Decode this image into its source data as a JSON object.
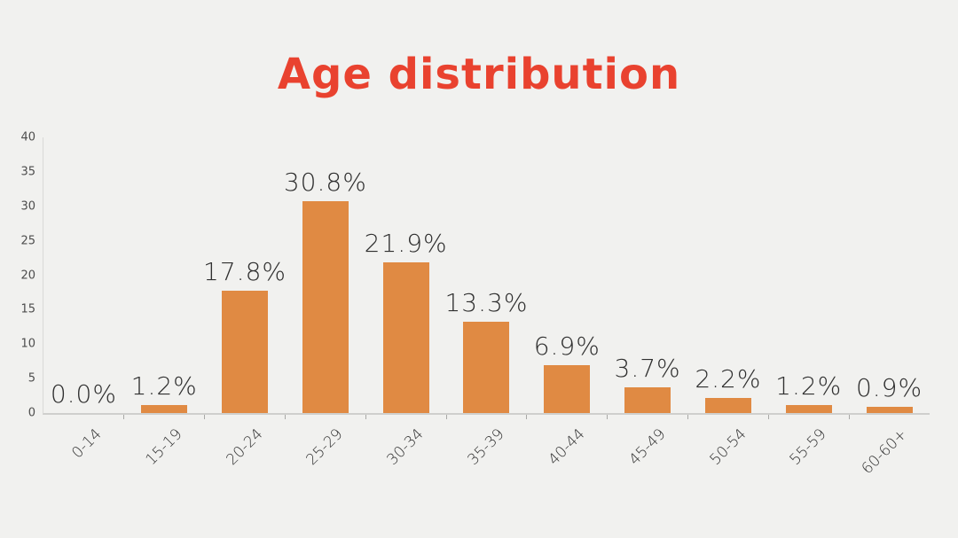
{
  "page": {
    "background": "#F1F1EF"
  },
  "title": {
    "text": "Age distribution",
    "color": "#E9422F"
  },
  "chart_data": {
    "type": "bar",
    "title": "Age distribution",
    "categories": [
      "0-14",
      "15-19",
      "20-24",
      "25-29",
      "30-34",
      "35-39",
      "40-44",
      "45-49",
      "50-54",
      "55-59",
      "60-60+"
    ],
    "values": [
      0.0,
      1.2,
      17.8,
      30.8,
      21.9,
      13.3,
      6.9,
      3.7,
      2.2,
      1.2,
      0.9
    ],
    "value_labels": [
      "0.0%",
      "1.2%",
      "17.8%",
      "30.8%",
      "21.9%",
      "13.3%",
      "6.9%",
      "3.7%",
      "2.2%",
      "1.2%",
      "0.9%"
    ],
    "xlabel": "",
    "ylabel": "",
    "ylim": [
      0,
      40
    ],
    "yticks": [
      0,
      5,
      10,
      15,
      20,
      25,
      30,
      35,
      40
    ],
    "bar_color": "#E08A43",
    "title_color": "#E9422F",
    "grid": false,
    "legend": "none",
    "x_tick_rotation": -45
  }
}
